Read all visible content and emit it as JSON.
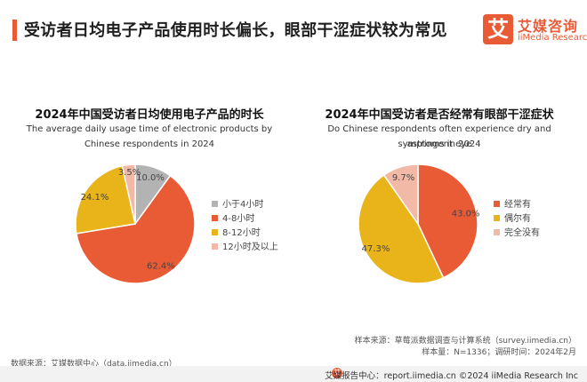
{
  "header": {
    "title": "受访者日均电子产品使用时长偏长，眼部干涩症状较为常见",
    "logo_mark": "艾",
    "logo_cn": "艾媒咨询",
    "logo_en": "iiMedia Research"
  },
  "colors": {
    "accent": "#e95b35",
    "gray": "#b3b3b3",
    "orange": "#e95b35",
    "yellow": "#e9b31a",
    "pink": "#f2b9a6"
  },
  "chart_data": [
    {
      "type": "pie",
      "title": "2024年中国受访者日均使用电子产品的时长",
      "subtitle_lines": [
        "The average daily usage time of electronic products by",
        "Chinese respondents in 2024"
      ],
      "categories": [
        "小于4小时",
        "4-8小时",
        "8-12小时",
        "12小时及以上"
      ],
      "values": [
        10.0,
        62.4,
        24.1,
        3.5
      ],
      "labels": [
        "10.0%",
        "62.4%",
        "24.1%",
        "3.5%"
      ],
      "legend_position": "right"
    },
    {
      "type": "pie",
      "title": "2024年中国受访者是否经常有眼部干涩症状",
      "subtitle_lines": [
        "Do Chinese respondents often experience dry and astringent eye",
        "symptoms in 2024"
      ],
      "categories": [
        "经常有",
        "偶尔有",
        "完全没有"
      ],
      "values": [
        43.0,
        47.3,
        9.7
      ],
      "labels": [
        "43.0%",
        "47.3%",
        "9.7%"
      ],
      "legend_position": "right"
    }
  ],
  "footer": {
    "source": "数据来源：艾媒数据中心（data.iimedia.cn）",
    "sample_source": "样本来源：草莓派数据调查与计算系统（survey.iimedia.cn）",
    "sample_size": "样本量：N=1336；调研时间：2024年2月",
    "bottom": "艾媒报告中心：report.iimedia.cn  ©2024  iiMedia Research  Inc",
    "bottom_icon": "艾"
  }
}
